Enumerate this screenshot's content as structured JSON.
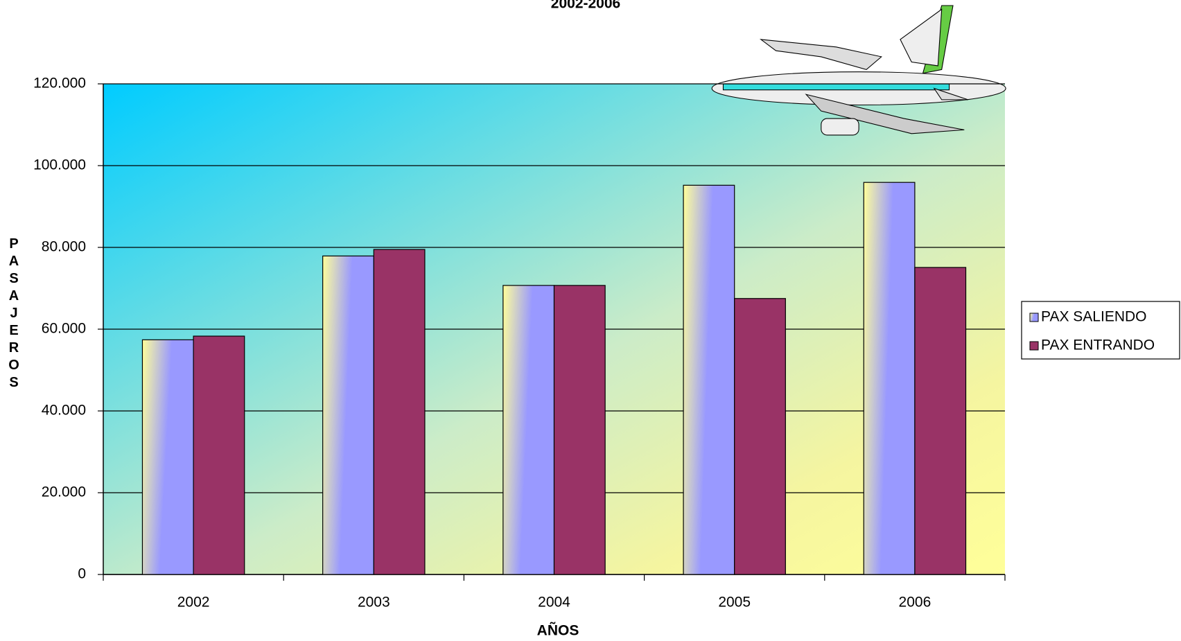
{
  "chart_data": {
    "type": "bar",
    "title": "2002-2006",
    "x_label": "AÑOS",
    "y_label": "PASAJEROS",
    "categories": [
      "2002",
      "2003",
      "2004",
      "2005",
      "2006"
    ],
    "series": [
      {
        "name": "PAX SALIENDO",
        "color": "#9999ff",
        "values": [
          57400,
          77900,
          70700,
          95200,
          95900
        ]
      },
      {
        "name": "PAX ENTRANDO",
        "color": "#993366",
        "values": [
          58300,
          79500,
          70700,
          67500,
          75100
        ]
      }
    ],
    "ylim": [
      0,
      120000
    ],
    "yticks": [
      0,
      {
        "value": 20000,
        "label": "20.000"
      },
      {
        "value": 40000,
        "label": "40.000"
      },
      {
        "value": 60000,
        "label": "60.000"
      },
      {
        "value": 80000,
        "label": "80.000"
      },
      {
        "value": 100000,
        "label": "100.000"
      },
      {
        "value": 120000,
        "label": "120.000"
      }
    ],
    "grid": true,
    "legend": "right"
  }
}
